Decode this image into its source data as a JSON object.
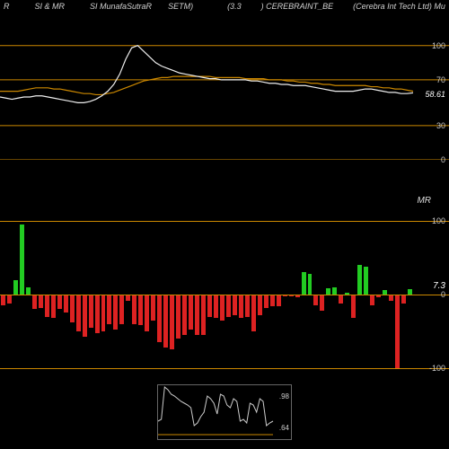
{
  "header": {
    "items": [
      "R",
      "SI & MR",
      "SI MunafaSutraR",
      "SETM)",
      "(3.3",
      ") CEREBRAINT_BE",
      "(Cerebra  Int Tech Ltd) Mu"
    ]
  },
  "top_chart": {
    "type": "line",
    "ylim": [
      0,
      110
    ],
    "gridlines": [
      {
        "y": 100,
        "color": "#cc8800",
        "label": "100"
      },
      {
        "y": 70,
        "color": "#cc8800",
        "label": "70"
      },
      {
        "y": 30,
        "color": "#cc8800",
        "label": "30"
      },
      {
        "y": 0,
        "color": "#cc8800",
        "label": "0"
      }
    ],
    "current_value": "58.61",
    "line_white": [
      55,
      54,
      53,
      54,
      55,
      55,
      56,
      56,
      55,
      54,
      53,
      52,
      51,
      50,
      50,
      51,
      53,
      56,
      60,
      66,
      75,
      88,
      98,
      100,
      95,
      90,
      85,
      82,
      80,
      78,
      76,
      75,
      74,
      73,
      72,
      71,
      71,
      70,
      70,
      70,
      70,
      70,
      69,
      69,
      68,
      67,
      67,
      66,
      66,
      65,
      65,
      65,
      64,
      63,
      62,
      61,
      60,
      60,
      60,
      60,
      61,
      62,
      62,
      61,
      60,
      59,
      59,
      58,
      58,
      58.61
    ],
    "line_orange": [
      60,
      60,
      60,
      60,
      61,
      62,
      63,
      63,
      63,
      62,
      62,
      61,
      60,
      59,
      58,
      58,
      57,
      57,
      58,
      59,
      61,
      63,
      65,
      67,
      69,
      70,
      71,
      72,
      72,
      73,
      73,
      73,
      73,
      73,
      73,
      73,
      72,
      72,
      72,
      72,
      72,
      71,
      71,
      71,
      71,
      70,
      70,
      70,
      69,
      69,
      68,
      68,
      67,
      67,
      66,
      66,
      65,
      65,
      65,
      65,
      65,
      65,
      64,
      64,
      63,
      63,
      62,
      62,
      61,
      60
    ],
    "line_color_white": "#eeeeee",
    "line_color_orange": "#cc8800"
  },
  "mid_chart": {
    "type": "bar",
    "ylim": [
      -110,
      110
    ],
    "gridlines": [
      {
        "y": 100,
        "color": "#cc8800",
        "label": "100"
      },
      {
        "y": 0,
        "color": "#cc8800",
        "label": "0"
      },
      {
        "y": -100,
        "color": "#cc8800",
        "label": "-100"
      }
    ],
    "current_value": "7.3",
    "zero_y": 90,
    "bars": [
      {
        "v": -15,
        "c": "#dd2222"
      },
      {
        "v": -12,
        "c": "#dd2222"
      },
      {
        "v": 20,
        "c": "#22cc22"
      },
      {
        "v": 95,
        "c": "#22cc22"
      },
      {
        "v": 10,
        "c": "#22cc22"
      },
      {
        "v": -20,
        "c": "#dd2222"
      },
      {
        "v": -18,
        "c": "#dd2222"
      },
      {
        "v": -30,
        "c": "#dd2222"
      },
      {
        "v": -32,
        "c": "#dd2222"
      },
      {
        "v": -20,
        "c": "#dd2222"
      },
      {
        "v": -25,
        "c": "#dd2222"
      },
      {
        "v": -38,
        "c": "#dd2222"
      },
      {
        "v": -50,
        "c": "#dd2222"
      },
      {
        "v": -58,
        "c": "#dd2222"
      },
      {
        "v": -45,
        "c": "#dd2222"
      },
      {
        "v": -52,
        "c": "#dd2222"
      },
      {
        "v": -50,
        "c": "#dd2222"
      },
      {
        "v": -40,
        "c": "#dd2222"
      },
      {
        "v": -48,
        "c": "#dd2222"
      },
      {
        "v": -40,
        "c": "#dd2222"
      },
      {
        "v": -8,
        "c": "#dd2222"
      },
      {
        "v": -40,
        "c": "#dd2222"
      },
      {
        "v": -42,
        "c": "#dd2222"
      },
      {
        "v": -50,
        "c": "#dd2222"
      },
      {
        "v": -35,
        "c": "#dd2222"
      },
      {
        "v": -65,
        "c": "#dd2222"
      },
      {
        "v": -72,
        "c": "#dd2222"
      },
      {
        "v": -75,
        "c": "#dd2222"
      },
      {
        "v": -60,
        "c": "#dd2222"
      },
      {
        "v": -55,
        "c": "#dd2222"
      },
      {
        "v": -48,
        "c": "#dd2222"
      },
      {
        "v": -55,
        "c": "#dd2222"
      },
      {
        "v": -55,
        "c": "#dd2222"
      },
      {
        "v": -30,
        "c": "#dd2222"
      },
      {
        "v": -32,
        "c": "#dd2222"
      },
      {
        "v": -35,
        "c": "#dd2222"
      },
      {
        "v": -30,
        "c": "#dd2222"
      },
      {
        "v": -28,
        "c": "#dd2222"
      },
      {
        "v": -32,
        "c": "#dd2222"
      },
      {
        "v": -30,
        "c": "#dd2222"
      },
      {
        "v": -50,
        "c": "#dd2222"
      },
      {
        "v": -28,
        "c": "#dd2222"
      },
      {
        "v": -18,
        "c": "#dd2222"
      },
      {
        "v": -16,
        "c": "#dd2222"
      },
      {
        "v": -16,
        "c": "#dd2222"
      },
      {
        "v": -3,
        "c": "#dd2222"
      },
      {
        "v": -3,
        "c": "#dd2222"
      },
      {
        "v": -4,
        "c": "#dd2222"
      },
      {
        "v": 30,
        "c": "#22cc22"
      },
      {
        "v": 28,
        "c": "#22cc22"
      },
      {
        "v": -15,
        "c": "#dd2222"
      },
      {
        "v": -22,
        "c": "#dd2222"
      },
      {
        "v": 8,
        "c": "#22cc22"
      },
      {
        "v": 10,
        "c": "#22cc22"
      },
      {
        "v": -12,
        "c": "#dd2222"
      },
      {
        "v": 3,
        "c": "#22cc22"
      },
      {
        "v": -32,
        "c": "#dd2222"
      },
      {
        "v": 40,
        "c": "#22cc22"
      },
      {
        "v": 38,
        "c": "#22cc22"
      },
      {
        "v": -15,
        "c": "#dd2222"
      },
      {
        "v": -4,
        "c": "#dd2222"
      },
      {
        "v": 6,
        "c": "#22cc22"
      },
      {
        "v": -8,
        "c": "#dd2222"
      },
      {
        "v": -100,
        "c": "#dd2222"
      },
      {
        "v": -12,
        "c": "#dd2222"
      },
      {
        "v": 7,
        "c": "#22cc22"
      }
    ]
  },
  "bottom_chart": {
    "type": "line",
    "labels": {
      "top": ".98",
      "bottom": ".64"
    },
    "data": [
      20,
      22,
      58,
      55,
      50,
      48,
      45,
      42,
      40,
      38,
      35,
      15,
      18,
      25,
      30,
      48,
      45,
      40,
      28,
      50,
      48,
      38,
      35,
      45,
      42,
      20,
      22,
      18,
      40,
      38,
      30,
      45,
      42,
      15,
      18,
      20
    ],
    "ylim": [
      0,
      60
    ],
    "line_color": "#cccccc",
    "baseline_color": "#cc8800"
  },
  "mr_label": "MR"
}
